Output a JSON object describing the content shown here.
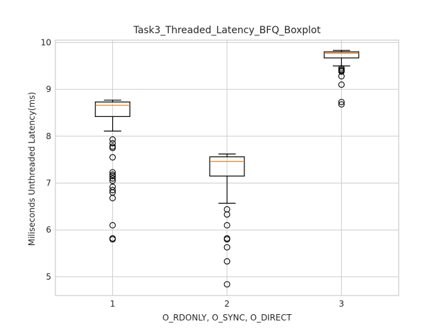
{
  "chart_data": {
    "type": "boxplot",
    "title": "Task3_Threaded_Latency_BFQ_Boxplot",
    "xlabel": "O_RDONLY, O_SYNC, O_DIRECT",
    "ylabel": "Miliseconds Unthreaded Latency(ms)",
    "ylim": [
      4.6,
      10.05
    ],
    "yticks": [
      "5",
      "6",
      "7",
      "8",
      "9",
      "10"
    ],
    "categories": [
      "1",
      "2",
      "3"
    ],
    "grid": true,
    "colors": {
      "box": "#000000",
      "median": "#ff7f0e",
      "grid": "#cccccc",
      "axes_edge": "#cccccc"
    },
    "boxes": [
      {
        "category": "1",
        "whisker_low": 8.11,
        "q1": 8.42,
        "median": 8.66,
        "q3": 8.73,
        "whisker_high": 8.77,
        "outliers": [
          7.93,
          7.85,
          7.78,
          7.75,
          7.55,
          7.23,
          7.18,
          7.15,
          7.1,
          7.05,
          6.92,
          6.85,
          6.8,
          6.68,
          6.1,
          5.82,
          5.8
        ]
      },
      {
        "category": "2",
        "whisker_low": 6.57,
        "q1": 7.15,
        "median": 7.46,
        "q3": 7.56,
        "whisker_high": 7.62,
        "outliers": [
          6.44,
          6.33,
          6.1,
          5.82,
          5.8,
          5.63,
          5.33,
          4.84
        ]
      },
      {
        "category": "3",
        "whisker_low": 9.5,
        "q1": 9.67,
        "median": 9.77,
        "q3": 9.8,
        "whisker_high": 9.83,
        "outliers": [
          9.45,
          9.42,
          9.4,
          9.38,
          9.28,
          9.1,
          8.73,
          8.68
        ]
      }
    ]
  }
}
